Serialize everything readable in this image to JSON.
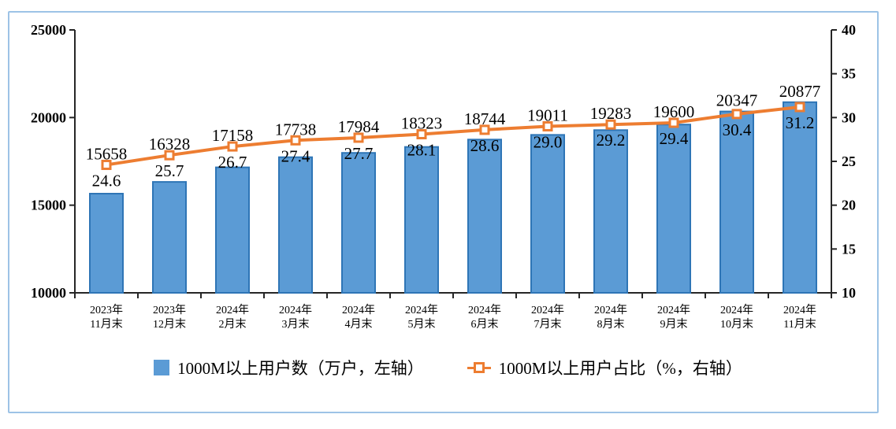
{
  "panel": {
    "background": "#ffffff",
    "border_color": "#9DC3E6",
    "axis_color": "#262626",
    "text_color": "#000000"
  },
  "chart_data": {
    "type": "bar",
    "subtype": "bar-line-combo-dual-axis",
    "categories": [
      [
        "2023年",
        "11月末"
      ],
      [
        "2023年",
        "12月末"
      ],
      [
        "2024年",
        "2月末"
      ],
      [
        "2024年",
        "3月末"
      ],
      [
        "2024年",
        "4月末"
      ],
      [
        "2024年",
        "5月末"
      ],
      [
        "2024年",
        "6月末"
      ],
      [
        "2024年",
        "7月末"
      ],
      [
        "2024年",
        "8月末"
      ],
      [
        "2024年",
        "9月末"
      ],
      [
        "2024年",
        "10月末"
      ],
      [
        "2024年",
        "11月末"
      ]
    ],
    "series": [
      {
        "name": "1000M以上用户数（万户，左轴）",
        "type": "bar",
        "axis": "left",
        "fill": "#5B9BD5",
        "stroke": "#2E75B6",
        "values": [
          15658,
          16328,
          17158,
          17738,
          17984,
          18323,
          18744,
          19011,
          19283,
          19600,
          20347,
          20877
        ],
        "labels": [
          "15658",
          "16328",
          "17158",
          "17738",
          "17984",
          "18323",
          "18744",
          "19011",
          "19283",
          "19600",
          "20347",
          "20877"
        ]
      },
      {
        "name": "1000M以上用户占比（%，右轴）",
        "type": "line",
        "axis": "right",
        "color": "#ED7D31",
        "marker": "open-square",
        "values": [
          24.6,
          25.7,
          26.7,
          27.4,
          27.7,
          28.1,
          28.6,
          29.0,
          29.2,
          29.4,
          30.4,
          31.2
        ],
        "labels": [
          "24.6",
          "25.7",
          "26.7",
          "27.4",
          "27.7",
          "28.1",
          "28.6",
          "29.0",
          "29.2",
          "29.4",
          "30.4",
          "31.2"
        ]
      }
    ],
    "left_axis": {
      "min": 10000,
      "max": 25000,
      "tick_labels": [
        "10000",
        "15000",
        "20000",
        "25000"
      ]
    },
    "right_axis": {
      "min": 10,
      "max": 40,
      "tick_labels": [
        "10",
        "15",
        "20",
        "25",
        "30",
        "35",
        "40"
      ]
    },
    "grid": false,
    "legend_position": "bottom"
  }
}
